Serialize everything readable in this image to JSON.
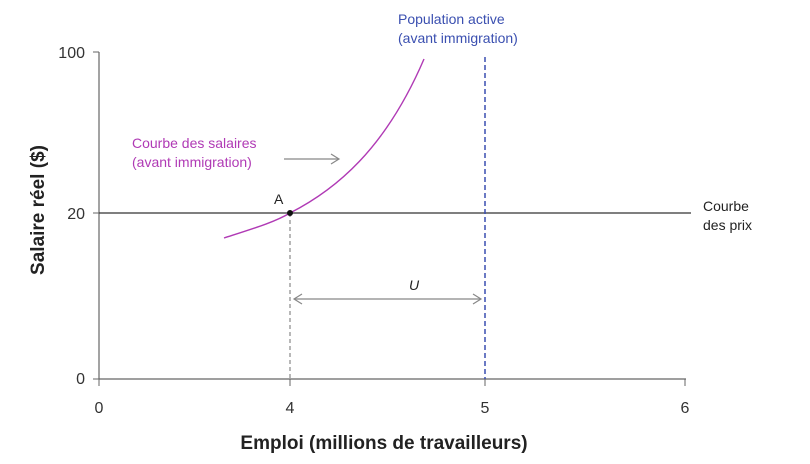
{
  "chart_data": {
    "type": "line",
    "xlabel": "Emploi (millions de travailleurs)",
    "ylabel": "Salaire réel ($)",
    "x_ticks": [
      0,
      4,
      5,
      6
    ],
    "y_ticks": [
      0,
      20,
      100
    ],
    "xlim": [
      0,
      6
    ],
    "y_tick_labels": [
      "0",
      "20",
      "100"
    ],
    "x_tick_labels": [
      "0",
      "4",
      "5",
      "6"
    ],
    "series": [
      {
        "name": "Courbe des salaires (avant immigration)",
        "color": "#b03ab5",
        "points": [
          [
            3.3,
            17
          ],
          [
            3.6,
            18.6
          ],
          [
            4.0,
            20
          ],
          [
            4.3,
            40
          ],
          [
            4.55,
            72
          ],
          [
            4.7,
            98
          ]
        ]
      },
      {
        "name": "Courbe des prix",
        "color": "#333333",
        "y": 20,
        "x_range": [
          0,
          6.05
        ]
      },
      {
        "name": "Population active (avant immigration)",
        "color": "#3a4fb0",
        "x": 5,
        "style": "dashed"
      }
    ],
    "annotations": {
      "point_A": {
        "label": "A",
        "x": 4,
        "y": 20
      },
      "U": {
        "label": "U",
        "from": 4,
        "to": 5
      },
      "wage_label_line1": "Courbe des salaires",
      "wage_label_line2": "(avant immigration)",
      "labour_label_line1": "Population active",
      "labour_label_line2": "(avant immigration)",
      "price_label_line1": "Courbe",
      "price_label_line2": "des prix"
    }
  }
}
